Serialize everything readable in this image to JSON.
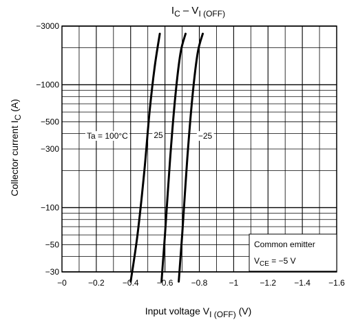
{
  "chart_data": {
    "type": "line",
    "title": {
      "main": "I",
      "main_sub": "C",
      "sep": " – V",
      "sep_sub": "I (OFF)"
    },
    "xlabel": {
      "text": "Input voltage",
      "var": "V",
      "var_sub": "I (OFF)",
      "unit": "(V)"
    },
    "ylabel": {
      "text": "Collector current",
      "var": "I",
      "var_sub": "C",
      "unit": "(A)"
    },
    "xlim": [
      0,
      -1.6
    ],
    "ylim": [
      -30,
      -3000
    ],
    "y_scale": "log",
    "grid": true,
    "x_ticks": [
      {
        "v": 0,
        "label": "−0"
      },
      {
        "v": -0.2,
        "label": "−0.2"
      },
      {
        "v": -0.4,
        "label": "−0.4"
      },
      {
        "v": -0.6,
        "label": "−0.6"
      },
      {
        "v": -0.8,
        "label": "−0.8"
      },
      {
        "v": -1.0,
        "label": "−1"
      },
      {
        "v": -1.2,
        "label": "−1.2"
      },
      {
        "v": -1.4,
        "label": "−1.4"
      },
      {
        "v": -1.6,
        "label": "−1.6"
      }
    ],
    "y_ticks": [
      {
        "v": -30,
        "label": "−30"
      },
      {
        "v": -50,
        "label": "−50"
      },
      {
        "v": -100,
        "label": "−100"
      },
      {
        "v": -300,
        "label": "−300"
      },
      {
        "v": -500,
        "label": "−500"
      },
      {
        "v": -1000,
        "label": "−1000"
      },
      {
        "v": -3000,
        "label": "−3000"
      }
    ],
    "series": [
      {
        "name": "Ta = 100°C",
        "points": [
          [
            -0.4,
            -25
          ],
          [
            -0.44,
            -60
          ],
          [
            -0.48,
            -200
          ],
          [
            -0.51,
            -600
          ],
          [
            -0.54,
            -1400
          ],
          [
            -0.57,
            -2600
          ]
        ]
      },
      {
        "name": "25",
        "points": [
          [
            -0.58,
            -25
          ],
          [
            -0.6,
            -60
          ],
          [
            -0.63,
            -250
          ],
          [
            -0.66,
            -800
          ],
          [
            -0.69,
            -1800
          ],
          [
            -0.72,
            -2600
          ]
        ]
      },
      {
        "name": "−25",
        "points": [
          [
            -0.68,
            -25
          ],
          [
            -0.7,
            -60
          ],
          [
            -0.73,
            -250
          ],
          [
            -0.76,
            -800
          ],
          [
            -0.79,
            -1800
          ],
          [
            -0.82,
            -2600
          ]
        ]
      }
    ],
    "annotations": {
      "line1": "Common emitter",
      "line2_var": "V",
      "line2_sub": "CE",
      "line2_val": " = −5 V"
    }
  }
}
